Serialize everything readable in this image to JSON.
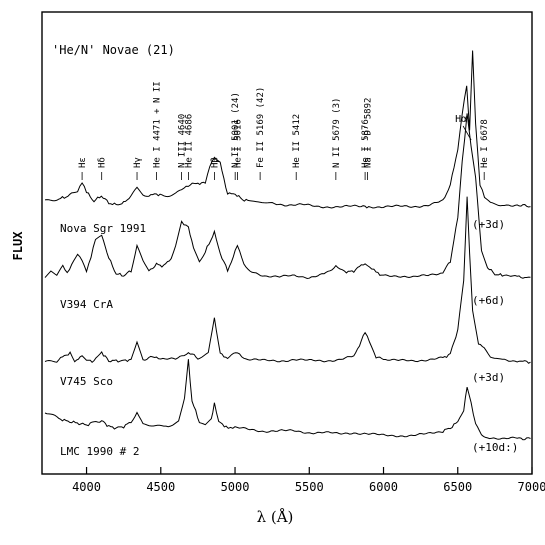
{
  "chart_data": {
    "type": "line",
    "title": "'He/N' Novae (21)",
    "xlabel": "λ (Å)",
    "ylabel": "FLUX",
    "xlim": [
      3700,
      7000
    ],
    "grid": false,
    "x_ticks": [
      4000,
      4500,
      5000,
      5500,
      6000,
      6500,
      7000
    ],
    "line_ids": [
      {
        "wavelength": 3970,
        "label": "Hε"
      },
      {
        "wavelength": 4102,
        "label": "Hδ"
      },
      {
        "wavelength": 4340,
        "label": "Hγ"
      },
      {
        "wavelength": 4471,
        "label": "He I 4471 + N II"
      },
      {
        "wavelength": 4640,
        "label": "N III 4640"
      },
      {
        "wavelength": 4686,
        "label": "He II 4686"
      },
      {
        "wavelength": 4861,
        "label": "Hβ"
      },
      {
        "wavelength": 5001,
        "label": "N II 5001 (24)"
      },
      {
        "wavelength": 5016,
        "label": "He I 5016"
      },
      {
        "wavelength": 5169,
        "label": "Fe II 5169 (42)"
      },
      {
        "wavelength": 5412,
        "label": "He II 5412"
      },
      {
        "wavelength": 5679,
        "label": "N II 5679 (3)"
      },
      {
        "wavelength": 5876,
        "label": "He I 5876"
      },
      {
        "wavelength": 5892,
        "label": "Na I 'D' 5892"
      },
      {
        "wavelength": 6563,
        "label": "Hα"
      },
      {
        "wavelength": 6678,
        "label": "He I 6678"
      }
    ],
    "series": [
      {
        "name": "Nova Sgr 1991",
        "epoch": "(+3d)",
        "x": [
          3720,
          3800,
          3850,
          3900,
          3940,
          3970,
          4000,
          4050,
          4100,
          4150,
          4200,
          4250,
          4300,
          4340,
          4380,
          4420,
          4471,
          4520,
          4600,
          4640,
          4686,
          4750,
          4800,
          4830,
          4861,
          4900,
          4950,
          5001,
          5050,
          5100,
          5169,
          5250,
          5350,
          5450,
          5550,
          5650,
          5750,
          5850,
          5900,
          6000,
          6100,
          6200,
          6300,
          6400,
          6450,
          6500,
          6530,
          6560,
          6580,
          6600,
          6620,
          6650,
          6680,
          6720,
          6800,
          6900,
          6990
        ],
        "y": [
          0.6,
          0.7,
          0.8,
          1.0,
          1.2,
          1.6,
          1.1,
          0.6,
          0.9,
          0.5,
          0.4,
          0.5,
          0.9,
          1.3,
          1.0,
          0.9,
          1.0,
          0.9,
          1.0,
          1.2,
          1.5,
          1.6,
          1.6,
          2.5,
          3.1,
          2.7,
          1.0,
          1.0,
          0.7,
          0.6,
          0.6,
          0.5,
          0.4,
          0.4,
          0.3,
          0.3,
          0.3,
          0.3,
          0.3,
          0.3,
          0.3,
          0.3,
          0.4,
          0.6,
          1.5,
          3.5,
          5.5,
          7.0,
          4.5,
          9.0,
          5.0,
          1.5,
          0.8,
          0.5,
          0.4,
          0.4,
          0.3
        ]
      },
      {
        "name": "V394 CrA",
        "epoch": "(+6d)",
        "x": [
          3720,
          3760,
          3800,
          3840,
          3870,
          3900,
          3940,
          3970,
          4000,
          4030,
          4060,
          4102,
          4150,
          4200,
          4250,
          4300,
          4340,
          4380,
          4420,
          4471,
          4520,
          4570,
          4600,
          4640,
          4686,
          4720,
          4760,
          4800,
          4861,
          4900,
          4950,
          5001,
          5016,
          5060,
          5100,
          5200,
          5300,
          5400,
          5500,
          5600,
          5679,
          5750,
          5800,
          5876,
          5950,
          6000,
          6100,
          6200,
          6300,
          6400,
          6450,
          6500,
          6530,
          6563,
          6590,
          6620,
          6660,
          6700,
          6750,
          6800,
          6900,
          6990
        ],
        "y": [
          0.8,
          1.2,
          0.9,
          1.5,
          1.0,
          1.6,
          2.2,
          1.9,
          1.2,
          2.0,
          3.2,
          3.4,
          2.0,
          1.0,
          0.9,
          1.2,
          2.8,
          1.8,
          1.2,
          1.6,
          1.5,
          2.0,
          2.8,
          4.3,
          3.9,
          2.6,
          1.8,
          2.4,
          3.6,
          2.3,
          1.2,
          2.4,
          2.8,
          1.7,
          1.2,
          0.9,
          0.8,
          0.9,
          0.8,
          1.0,
          1.5,
          1.1,
          1.2,
          1.7,
          1.1,
          0.9,
          0.9,
          0.8,
          0.9,
          1.1,
          1.8,
          4.5,
          8.0,
          11.0,
          9.0,
          7.0,
          2.5,
          1.4,
          1.0,
          0.9,
          0.8,
          0.8
        ]
      },
      {
        "name": "V745 Sco",
        "epoch": "(+3d)",
        "x": [
          3720,
          3800,
          3889,
          3920,
          3970,
          4000,
          4050,
          4102,
          4150,
          4200,
          4250,
          4300,
          4340,
          4380,
          4471,
          4500,
          4600,
          4686,
          4750,
          4820,
          4861,
          4900,
          4950,
          5016,
          5060,
          5100,
          5200,
          5300,
          5400,
          5500,
          5600,
          5700,
          5800,
          5876,
          5950,
          6000,
          6100,
          6200,
          6300,
          6400,
          6450,
          6500,
          6540,
          6563,
          6580,
          6600,
          6640,
          6678,
          6720,
          6800,
          6900,
          6990
        ],
        "y": [
          0.2,
          0.3,
          0.9,
          0.3,
          0.6,
          0.3,
          0.3,
          0.9,
          0.3,
          0.3,
          0.3,
          0.4,
          1.6,
          0.4,
          0.6,
          0.4,
          0.4,
          0.9,
          0.5,
          0.9,
          3.4,
          0.8,
          0.5,
          0.9,
          0.4,
          0.4,
          0.3,
          0.3,
          0.4,
          0.3,
          0.3,
          0.4,
          0.6,
          2.3,
          0.6,
          0.4,
          0.3,
          0.3,
          0.4,
          0.5,
          0.8,
          2.5,
          6.0,
          12.0,
          8.0,
          4.0,
          1.5,
          1.2,
          0.6,
          0.4,
          0.3,
          0.2
        ]
      },
      {
        "name": "LMC 1990 # 2",
        "epoch": "(+10d:)",
        "x": [
          3720,
          3760,
          3800,
          3850,
          3900,
          3950,
          4000,
          4050,
          4102,
          4150,
          4200,
          4250,
          4300,
          4340,
          4380,
          4450,
          4520,
          4580,
          4620,
          4660,
          4686,
          4710,
          4760,
          4800,
          4840,
          4861,
          4890,
          4940,
          5000,
          5100,
          5200,
          5300,
          5400,
          5500,
          5600,
          5700,
          5800,
          5900,
          6000,
          6100,
          6200,
          6300,
          6400,
          6450,
          6500,
          6540,
          6563,
          6590,
          6620,
          6660,
          6700,
          6800,
          6900,
          6990
        ],
        "y": [
          1.9,
          1.7,
          1.5,
          1.3,
          1.2,
          1.1,
          1.0,
          1.2,
          1.3,
          0.9,
          0.8,
          0.9,
          1.2,
          1.9,
          1.0,
          0.9,
          0.9,
          1.0,
          1.3,
          2.8,
          5.3,
          2.6,
          1.2,
          1.0,
          1.4,
          2.4,
          1.2,
          0.9,
          0.8,
          0.7,
          0.6,
          0.6,
          0.6,
          0.5,
          0.5,
          0.4,
          0.5,
          0.4,
          0.3,
          0.3,
          0.3,
          0.4,
          0.6,
          0.8,
          1.2,
          2.0,
          3.5,
          2.5,
          1.0,
          0.4,
          0.2,
          0.1,
          0.1,
          0.1
        ]
      }
    ]
  }
}
